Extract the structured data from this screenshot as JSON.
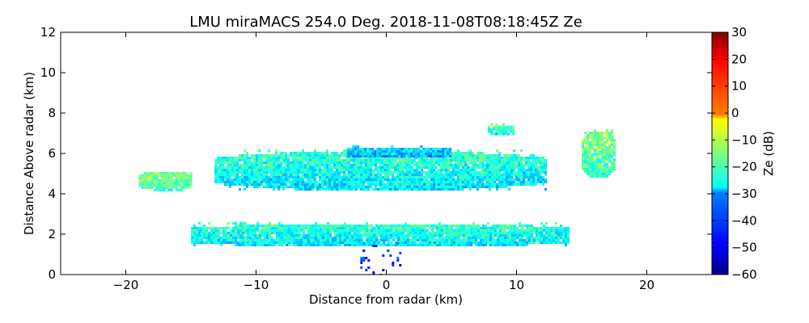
{
  "chart_data": {
    "type": "heatmap",
    "title": "LMU miraMACS 254.0 Deg. 2018-11-08T08:18:45Z  Ze",
    "xlabel": "Distance from radar (km)",
    "ylabel": "Distance Above radar  (km)",
    "xlim": [
      -25,
      25
    ],
    "ylim": [
      0,
      12
    ],
    "xticks": [
      -20,
      -10,
      0,
      10,
      20
    ],
    "xtick_labels": [
      "−20",
      "−10",
      "0",
      "10",
      "20"
    ],
    "yticks": [
      0,
      2,
      4,
      6,
      8,
      10,
      12
    ],
    "ytick_labels": [
      "0",
      "2",
      "4",
      "6",
      "8",
      "10",
      "12"
    ],
    "colorbar": {
      "label": "Ze (dB)",
      "range": [
        -60,
        30
      ],
      "ticks": [
        30,
        20,
        10,
        0,
        -10,
        -20,
        -30,
        -40,
        -50,
        -60
      ],
      "tick_labels": [
        "30",
        "20",
        "10",
        "0",
        "−10",
        "−20",
        "−30",
        "−40",
        "−50",
        "−60"
      ],
      "colormap": "jet"
    },
    "regions": [
      {
        "name": "upper cloud layer",
        "x": [
          -13.2,
          12.2
        ],
        "y": [
          4.2,
          6.2
        ],
        "ze_typical": -25
      },
      {
        "name": "upper cloud top",
        "x": [
          -3.0,
          5.0
        ],
        "y": [
          5.8,
          6.4
        ],
        "ze_typical": -32
      },
      {
        "name": "left upper fragments",
        "x": [
          -19.0,
          -15.0
        ],
        "y": [
          4.2,
          5.2
        ],
        "ze_typical": -18
      },
      {
        "name": "upper right fragment",
        "x": [
          7.8,
          9.8
        ],
        "y": [
          7.0,
          7.5
        ],
        "ze_typical": -22
      },
      {
        "name": "far right fragments",
        "x": [
          15.0,
          17.5
        ],
        "y": [
          4.8,
          7.2
        ],
        "ze_typical": -18
      },
      {
        "name": "lower cloud layer",
        "x": [
          -15.0,
          14.0
        ],
        "y": [
          1.4,
          2.6
        ],
        "ze_typical": -25
      },
      {
        "name": "near-radar returns",
        "x": [
          -2.0,
          1.0
        ],
        "y": [
          0.0,
          1.6
        ],
        "ze_typical": -45
      }
    ]
  }
}
